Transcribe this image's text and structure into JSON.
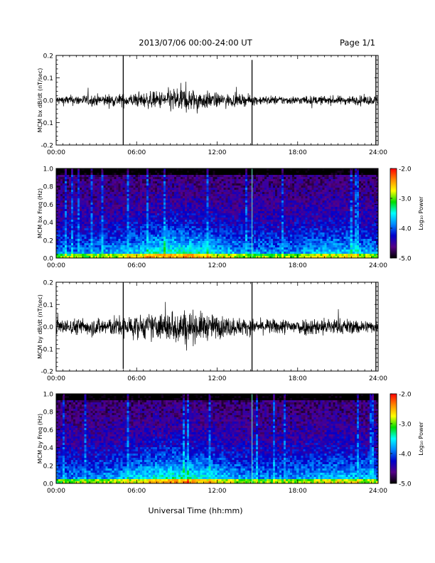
{
  "header": {
    "title": "2013/07/06  00:00-24:00 UT",
    "page": "Page 1/1"
  },
  "footer": {
    "xlabel": "Universal Time (hh:mm)"
  },
  "colorbar": {
    "label": "Log₁₀ Power",
    "ticks": [
      "-2.0",
      "-3.0",
      "-4.0",
      "-5.0"
    ],
    "stops": [
      "#ff0000",
      "#ff8800",
      "#ffff00",
      "#00dd00",
      "#00ffff",
      "#0088ff",
      "#0000cc",
      "#550088",
      "#000000"
    ]
  },
  "chart_data": [
    {
      "type": "line",
      "ylabel": "MCM bx dB/dt (nT/sec)",
      "xlim": [
        "00:00",
        "24:00"
      ],
      "ylim": [
        -0.2,
        0.2
      ],
      "x_ticks": [
        "00:00",
        "06:00",
        "12:00",
        "18:00",
        "24:00"
      ],
      "y_ticks": [
        "0.2",
        "0.1",
        "0.0",
        "-0.1",
        "-0.2"
      ],
      "spikes": [
        {
          "time": "05:00",
          "min": -0.2,
          "max": 0.2
        },
        {
          "time": "14:36",
          "min": -0.2,
          "max": 0.18
        },
        {
          "time": "23:50",
          "min": -0.2,
          "max": 0.2
        }
      ],
      "envelope": [
        {
          "time": "00:00",
          "amp": 0.02
        },
        {
          "time": "03:00",
          "amp": 0.025
        },
        {
          "time": "06:00",
          "amp": 0.03
        },
        {
          "time": "08:00",
          "amp": 0.04
        },
        {
          "time": "09:00",
          "amp": 0.06
        },
        {
          "time": "10:00",
          "amp": 0.05
        },
        {
          "time": "12:00",
          "amp": 0.03
        },
        {
          "time": "15:00",
          "amp": 0.02
        },
        {
          "time": "18:00",
          "amp": 0.018
        },
        {
          "time": "24:00",
          "amp": 0.02
        }
      ]
    },
    {
      "type": "heatmap",
      "ylabel": "MCM bx Freq (Hz)",
      "xlim": [
        "00:00",
        "24:00"
      ],
      "ylim": [
        0.0,
        1.0
      ],
      "zlim": [
        -5.0,
        -2.0
      ],
      "x_ticks": [
        "00:00",
        "06:00",
        "12:00",
        "18:00",
        "24:00"
      ],
      "y_ticks": [
        "1.0",
        "0.8",
        "0.6",
        "0.4",
        "0.2",
        "0.0"
      ]
    },
    {
      "type": "line",
      "ylabel": "MCM by dB/dt (nT/sec)",
      "xlim": [
        "00:00",
        "24:00"
      ],
      "ylim": [
        -0.2,
        0.2
      ],
      "x_ticks": [
        "00:00",
        "06:00",
        "12:00",
        "18:00",
        "24:00"
      ],
      "y_ticks": [
        "0.2",
        "0.1",
        "0.0",
        "-0.1",
        "-0.2"
      ],
      "spikes": [
        {
          "time": "05:00",
          "min": -0.19,
          "max": 0.2
        },
        {
          "time": "14:36",
          "min": -0.2,
          "max": 0.2
        },
        {
          "time": "23:50",
          "min": -0.2,
          "max": 0.2
        }
      ],
      "envelope": [
        {
          "time": "00:00",
          "amp": 0.03
        },
        {
          "time": "03:00",
          "amp": 0.04
        },
        {
          "time": "06:00",
          "amp": 0.05
        },
        {
          "time": "08:00",
          "amp": 0.06
        },
        {
          "time": "09:00",
          "amp": 0.08
        },
        {
          "time": "10:00",
          "amp": 0.07
        },
        {
          "time": "12:00",
          "amp": 0.05
        },
        {
          "time": "15:00",
          "amp": 0.03
        },
        {
          "time": "20:00",
          "amp": 0.04
        },
        {
          "time": "24:00",
          "amp": 0.025
        }
      ]
    },
    {
      "type": "heatmap",
      "ylabel": "MCM by Freq (Hz)",
      "xlim": [
        "00:00",
        "24:00"
      ],
      "ylim": [
        0.0,
        1.0
      ],
      "zlim": [
        -5.0,
        -2.0
      ],
      "x_ticks": [
        "00:00",
        "06:00",
        "12:00",
        "18:00",
        "24:00"
      ],
      "y_ticks": [
        "1.0",
        "0.8",
        "0.6",
        "0.4",
        "0.2",
        "0.0"
      ]
    }
  ]
}
